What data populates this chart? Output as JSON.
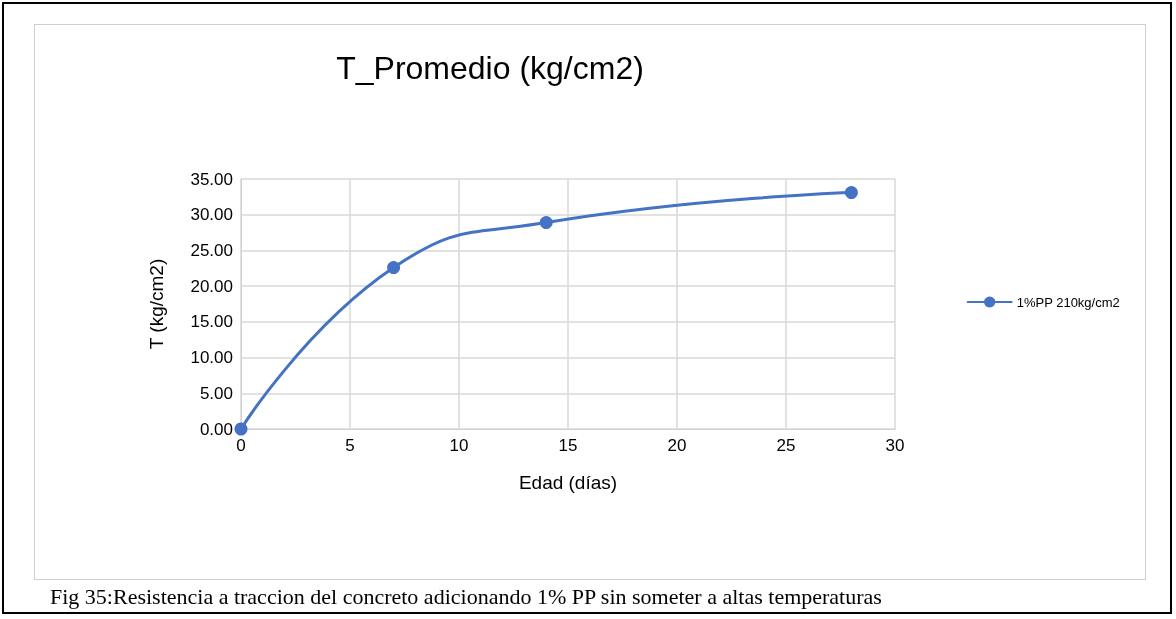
{
  "chart_data": {
    "type": "line",
    "title": "T_Promedio (kg/cm2)",
    "xlabel": "Edad (días)",
    "ylabel": "T (kg/cm2)",
    "x": [
      0,
      7,
      14,
      28
    ],
    "series": [
      {
        "name": "1%PP 210kg/cm2",
        "color": "#4472c4",
        "values": [
          0,
          22.6,
          28.9,
          33.1
        ]
      }
    ],
    "xlim": [
      0,
      30
    ],
    "xticks": [
      0,
      5,
      10,
      15,
      20,
      25,
      30
    ],
    "ylim": [
      0,
      35
    ],
    "yticks": [
      {
        "value": 0,
        "label": "0.00"
      },
      {
        "value": 5,
        "label": "5.00"
      },
      {
        "value": 10,
        "label": "10.00"
      },
      {
        "value": 15,
        "label": "15.00"
      },
      {
        "value": 20,
        "label": "20.00"
      },
      {
        "value": 25,
        "label": "25.00"
      },
      {
        "value": 30,
        "label": "30.00"
      },
      {
        "value": 35,
        "label": "35.00"
      }
    ],
    "grid": true,
    "legend": "right",
    "marker": "circle",
    "line_style": "solid",
    "annotations": [
      "Fig 35:Resistencia a traccion del concreto adicionando 1% PP sin someter a altas temperaturas"
    ]
  }
}
